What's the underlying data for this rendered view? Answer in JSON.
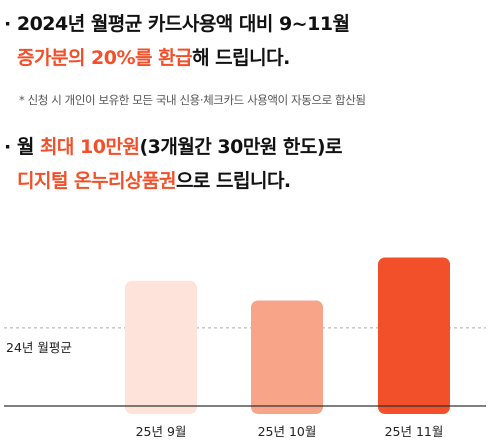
{
  "promo": {
    "line1": {
      "bullet": "·",
      "text": "2024년 월평균 카드사용액 대비 9~11월"
    },
    "line2": {
      "highlight": "증가분의 20%를 환급",
      "text": "해 드립니다."
    },
    "note": "* 신청 시 개인이 보유한 모든 국내 신용·체크카드 사용액이 자동으로 합산됨",
    "line3": {
      "bullet": "·",
      "prefix": "월 ",
      "highlight": "최대 10만원",
      "suffix": "(3개월간 30만원 한도)로"
    },
    "line4": {
      "highlight": "디지털 온누리상품권",
      "text": "으로 드립니다."
    }
  },
  "chart_data": {
    "type": "bar",
    "categories": [
      "25년 9월",
      "25년 10월",
      "25년 11월"
    ],
    "values": [
      1.6,
      1.35,
      1.9
    ],
    "reference_line": {
      "label": "24년 월평균",
      "value": 1.0
    },
    "ylim": [
      0,
      2.2
    ],
    "colors": [
      "#fde3d9",
      "#f7a488",
      "#f2502a"
    ],
    "reference_color": "#aaaaaa",
    "axis_color": "#333333",
    "grid": false
  }
}
